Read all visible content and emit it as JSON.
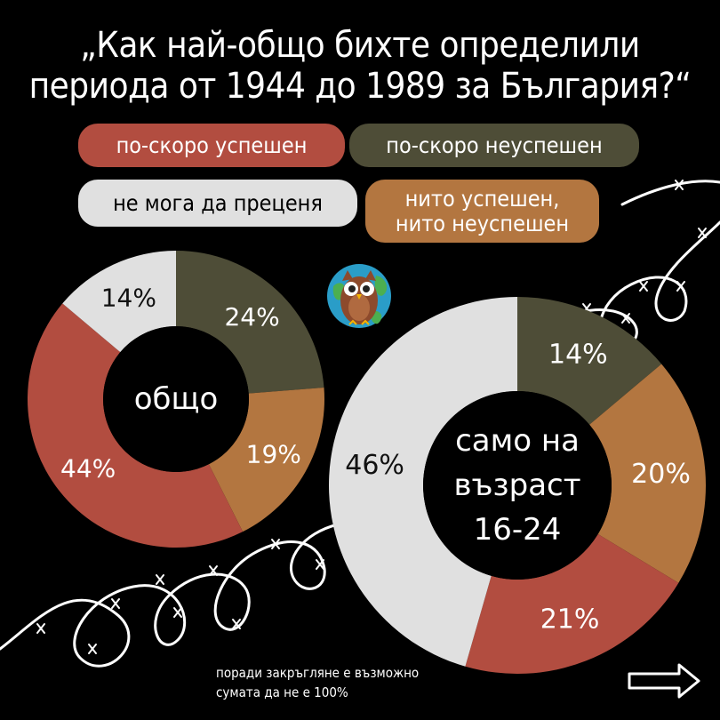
{
  "title": {
    "line1": "„Как най-общо бихте определили",
    "line2": "периода от 1944 до 1989 за България?“"
  },
  "legend": [
    {
      "key": "successful",
      "text": "по-скоро успешен",
      "color": "#b24d40"
    },
    {
      "key": "unsuccessful",
      "text": "по-скоро неуспешен",
      "color": "#4e4d37"
    },
    {
      "key": "cant_judge",
      "text": "не мога да преценя",
      "color": "#e0e0e0"
    },
    {
      "key": "neither",
      "line1": "нито успешен,",
      "line2": "нито неуспешен",
      "color": "#b37640"
    }
  ],
  "chart_data": [
    {
      "type": "pie",
      "title": "общо",
      "categories": [
        "по-скоро неуспешен",
        "нито успешен, нито неуспешен",
        "по-скоро успешен",
        "не мога да преценя"
      ],
      "values": [
        24,
        19,
        44,
        14
      ],
      "labels": [
        "24%",
        "19%",
        "44%",
        "14%"
      ],
      "colors": [
        "#4e4d37",
        "#b37640",
        "#b24d40",
        "#e0e0e0"
      ]
    },
    {
      "type": "pie",
      "title_lines": [
        "само на",
        "възраст",
        "16-24"
      ],
      "categories": [
        "по-скоро неуспешен",
        "нито успешен, нито неуспешен",
        "по-скоро успешен",
        "не мога да преценя"
      ],
      "values": [
        14,
        20,
        21,
        46
      ],
      "labels": [
        "14%",
        "20%",
        "21%",
        "46%"
      ],
      "colors": [
        "#4e4d37",
        "#b37640",
        "#b24d40",
        "#e0e0e0"
      ]
    }
  ],
  "footnote": {
    "line1": "поради закръгляне е възможно",
    "line2": "сумата да не е 100%"
  },
  "icons": {
    "logo": "owl-globe-icon",
    "arrow": "arrow-right-icon",
    "decoration": "barbed-wire-icon"
  }
}
